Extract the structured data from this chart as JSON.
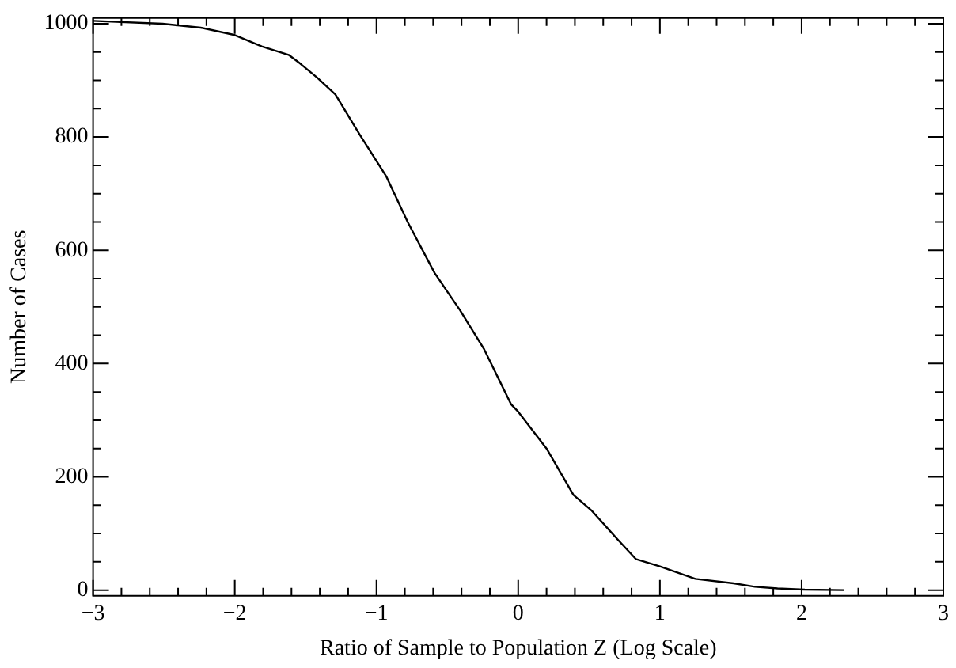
{
  "chart_data": {
    "type": "line",
    "xlabel": "Ratio of Sample to Population Z (Log Scale)",
    "ylabel": "Number of Cases",
    "x": [
      -3,
      -2.51,
      -2.24,
      -2.0,
      -1.81,
      -1.62,
      -1.54,
      -1.42,
      -1.29,
      -1.12,
      -0.93,
      -0.78,
      -0.59,
      -0.41,
      -0.24,
      -0.05,
      0,
      0.2,
      0.39,
      0.52,
      0.7,
      0.83,
      1.0,
      1.25,
      1.52,
      1.67,
      1.83,
      2.02,
      2.3
    ],
    "series": [
      {
        "color": "#000000",
        "values": [
          1005,
          1000,
          993,
          980,
          960,
          945,
          930,
          905,
          875,
          805,
          730,
          650,
          560,
          494,
          425,
          328,
          315,
          250,
          168,
          140,
          90,
          55,
          42,
          20,
          12,
          6,
          3,
          1,
          0
        ]
      }
    ],
    "xlim": [
      -3,
      3
    ],
    "ylim": [
      -10,
      1010
    ],
    "xticks": [
      -3,
      {
        "value": -2.8,
        "label": null
      },
      {
        "value": -2.6,
        "label": null
      },
      {
        "value": -2.4,
        "label": null
      },
      {
        "value": -2.2,
        "label": null
      },
      -2,
      {
        "value": -1.8,
        "label": null
      },
      {
        "value": -1.6,
        "label": null
      },
      {
        "value": -1.4,
        "label": null
      },
      {
        "value": -1.2,
        "label": null
      },
      -1,
      {
        "value": -0.8,
        "label": null
      },
      {
        "value": -0.6,
        "label": null
      },
      {
        "value": -0.4,
        "label": null
      },
      {
        "value": -0.2,
        "label": null
      },
      0,
      {
        "value": 0.2,
        "label": null
      },
      {
        "value": 0.4,
        "label": null
      },
      {
        "value": 0.6,
        "label": null
      },
      {
        "value": 0.8,
        "label": null
      },
      1,
      {
        "value": 1.2,
        "label": null
      },
      {
        "value": 1.4,
        "label": null
      },
      {
        "value": 1.6,
        "label": null
      },
      {
        "value": 1.8,
        "label": null
      },
      2,
      {
        "value": 2.2,
        "label": null
      },
      {
        "value": 2.4,
        "label": null
      },
      {
        "value": 2.6,
        "label": null
      },
      {
        "value": 2.8,
        "label": null
      },
      3
    ],
    "yticks": [
      0,
      {
        "value": 50,
        "label": null
      },
      {
        "value": 100,
        "label": null
      },
      {
        "value": 150,
        "label": null
      },
      200,
      {
        "value": 250,
        "label": null
      },
      {
        "value": 300,
        "label": null
      },
      {
        "value": 350,
        "label": null
      },
      400,
      {
        "value": 450,
        "label": null
      },
      {
        "value": 500,
        "label": null
      },
      {
        "value": 550,
        "label": null
      },
      600,
      {
        "value": 650,
        "label": null
      },
      {
        "value": 700,
        "label": null
      },
      {
        "value": 750,
        "label": null
      },
      800,
      {
        "value": 850,
        "label": null
      },
      {
        "value": 900,
        "label": null
      },
      {
        "value": 950,
        "label": null
      },
      1000
    ],
    "grid": false,
    "legend": false,
    "marker": "none",
    "line_style": "solid"
  }
}
